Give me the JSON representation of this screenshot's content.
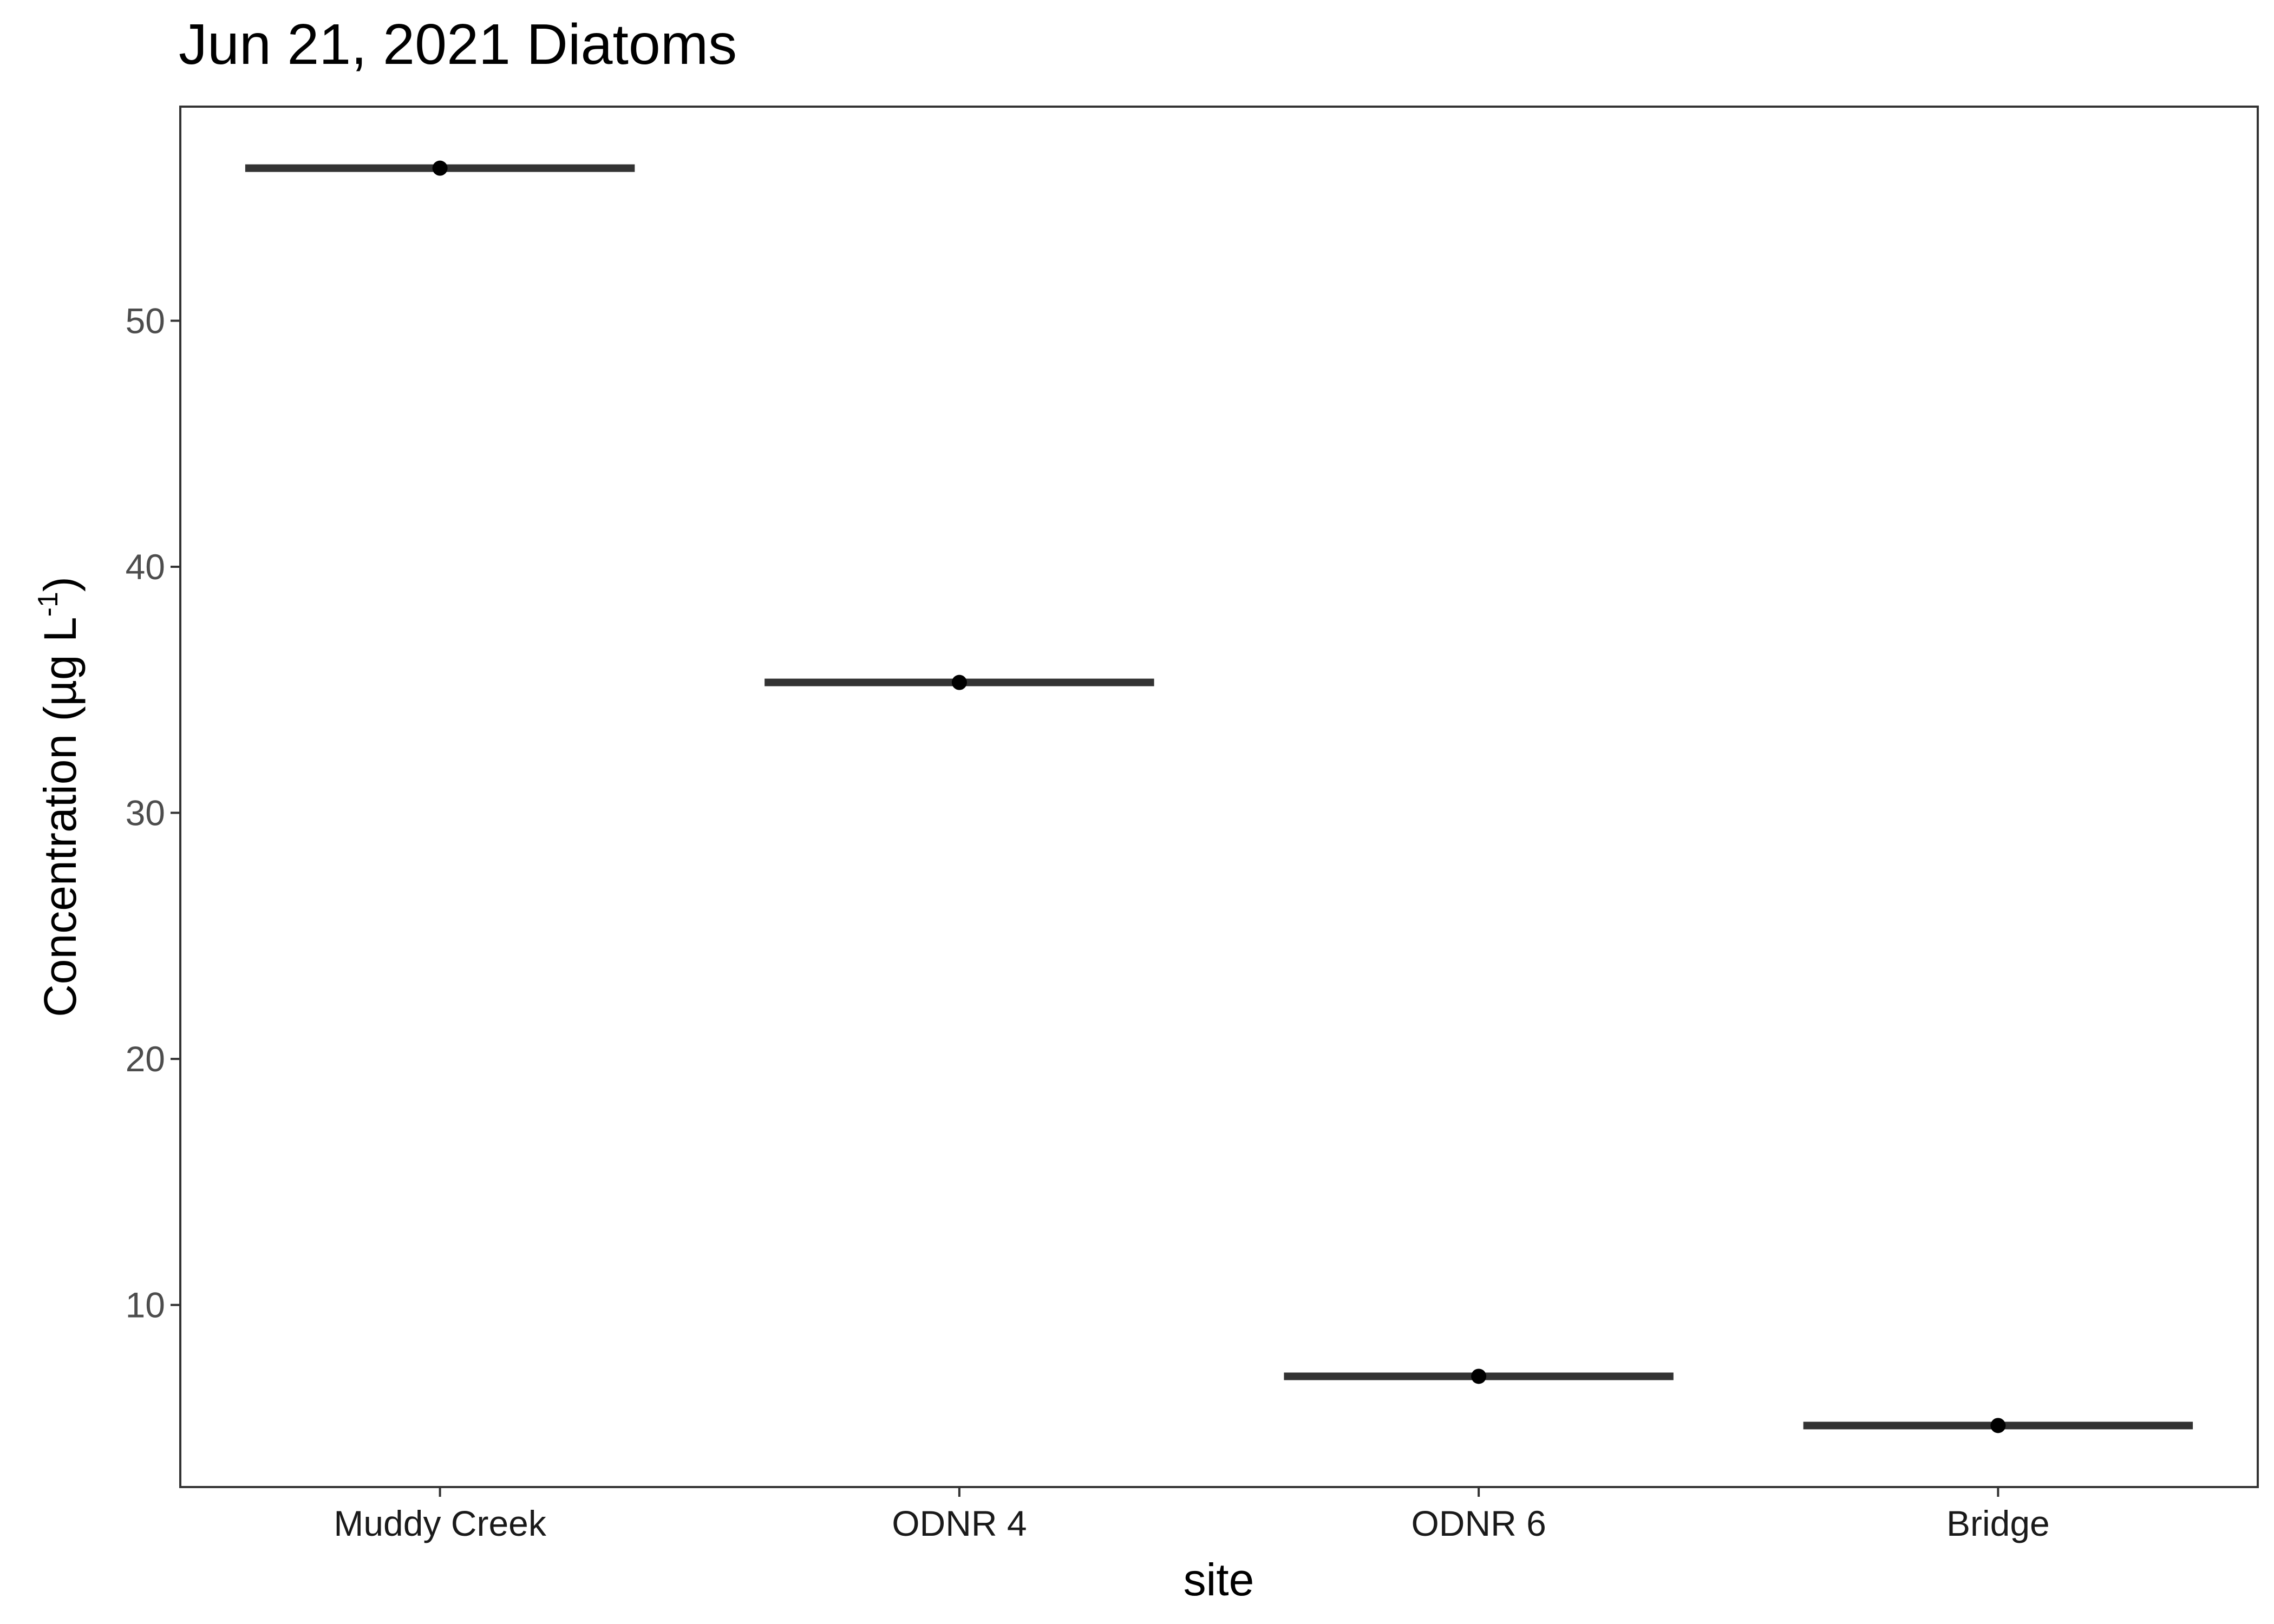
{
  "chart_data": {
    "type": "box",
    "title": "Jun 21, 2021 Diatoms",
    "xlabel": "site",
    "ylabel": {
      "prefix": "Concentration (µg L",
      "superscript": "-1",
      "suffix": ")"
    },
    "categories": [
      "Muddy Creek",
      "ODNR 4",
      "ODNR 6",
      "Bridge"
    ],
    "values": [
      56.2,
      35.3,
      7.1,
      5.1
    ],
    "yticks": [
      10,
      20,
      30,
      40,
      50
    ],
    "ylim": [
      2.6,
      58.7
    ],
    "grid": false,
    "legend": "none",
    "colors": {
      "median_line": "#333333",
      "point": "#000000",
      "panel_border": "#333333",
      "tick": "#333333",
      "tick_label": "#4d4d4d"
    }
  }
}
